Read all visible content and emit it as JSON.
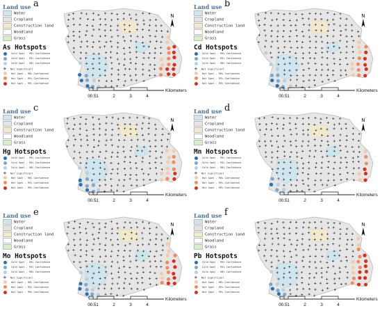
{
  "figure": {
    "panels": [
      {
        "letter": "a",
        "hotspot_title": "As Hotspots"
      },
      {
        "letter": "b",
        "hotspot_title": "Cd Hotspots"
      },
      {
        "letter": "c",
        "hotspot_title": "Hg Hotspots"
      },
      {
        "letter": "d",
        "hotspot_title": "Mn Hotspots"
      },
      {
        "letter": "e",
        "hotspot_title": "Mo Hotspots"
      },
      {
        "letter": "f",
        "hotspot_title": "Pb Hotspots"
      }
    ],
    "land_use": {
      "title": "Land use",
      "classes": [
        {
          "label": "Water",
          "color": "#cfe6ee"
        },
        {
          "label": "Cropland",
          "color": "#e4e4e4"
        },
        {
          "label": "Construction land",
          "color": "#f3e9cc"
        },
        {
          "label": "Woodland",
          "color": "#ffffff"
        },
        {
          "label": "Grass",
          "color": "#d7ecc8"
        }
      ]
    },
    "hotspot_legend": [
      {
        "label": "Cold Spot - 99% Confidence",
        "color": "#2b6fb6",
        "symbol": "circle"
      },
      {
        "label": "Cold Spot - 95% Confidence",
        "color": "#7aa8cf",
        "symbol": "circle"
      },
      {
        "label": "Cold Spot - 90% Confidence",
        "color": "#b9cfe0",
        "symbol": "circle"
      },
      {
        "label": "Not Significant",
        "color": "#111111",
        "symbol": "plus"
      },
      {
        "label": "Hot Spot - 90% Confidence",
        "color": "#f6c9a8",
        "symbol": "circle"
      },
      {
        "label": "Hot Spot - 95% Confidence",
        "color": "#f08a5f",
        "symbol": "circle"
      },
      {
        "label": "Hot Spot - 99% Confidence",
        "color": "#d7301f",
        "symbol": "circle"
      }
    ],
    "scale_bar": {
      "ticks": [
        "0",
        "0.5",
        "1",
        "2",
        "3",
        "4"
      ],
      "unit": "Kilometers"
    },
    "north_label": "N",
    "colors": {
      "study_area": "#e6e6e6",
      "outline": "#b9b9b9",
      "grid_cross": "#222222"
    },
    "hotspot_levels": {
      "a": {
        "hot99": 8,
        "hot95": 6,
        "hot90": 4,
        "cold99": 3,
        "cold95": 3,
        "cold90": 3
      },
      "b": {
        "hot99": 5,
        "hot95": 5,
        "hot90": 6,
        "cold99": 2,
        "cold95": 4,
        "cold90": 5
      },
      "c": {
        "hot99": 2,
        "hot95": 4,
        "hot90": 8,
        "cold99": 3,
        "cold95": 4,
        "cold90": 3
      },
      "d": {
        "hot99": 3,
        "hot95": 2,
        "hot90": 3,
        "cold99": 1,
        "cold95": 2,
        "cold90": 2
      },
      "e": {
        "hot99": 6,
        "hot95": 6,
        "hot90": 5,
        "cold99": 3,
        "cold95": 3,
        "cold90": 4
      },
      "f": {
        "hot99": 9,
        "hot95": 6,
        "hot90": 5,
        "cold99": 2,
        "cold95": 3,
        "cold90": 3
      }
    }
  }
}
